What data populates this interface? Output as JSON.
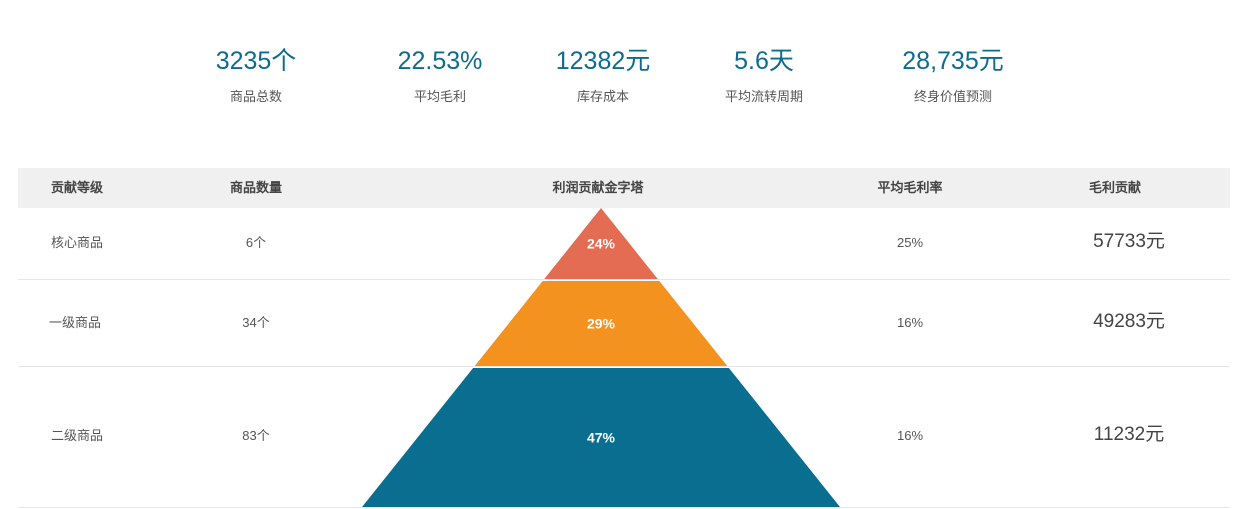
{
  "kpis": [
    {
      "value": "3235个",
      "label": "商品总数"
    },
    {
      "value": "22.53%",
      "label": "平均毛利"
    },
    {
      "value": "12382元",
      "label": "库存成本"
    },
    {
      "value": "5.6天",
      "label": "平均流转周期"
    },
    {
      "value": "28,735元",
      "label": "终身价值预测"
    }
  ],
  "table": {
    "headers": [
      "贡献等级",
      "商品数量",
      "利润贡献金字塔",
      "平均毛利率",
      "毛利贡献"
    ],
    "rows": [
      {
        "level": "核心商品",
        "count": "6个",
        "pct_label": "24%",
        "margin": "25%",
        "contribution": "57733元"
      },
      {
        "level": "一级商品",
        "count": "34个",
        "pct_label": "29%",
        "margin": "16%",
        "contribution": "49283元"
      },
      {
        "level": "二级商品",
        "count": "83个",
        "pct_label": "47%",
        "margin": "16%",
        "contribution": "11232元"
      }
    ]
  },
  "chart_data": {
    "type": "pyramid",
    "title": "利润贡献金字塔",
    "categories": [
      "核心商品",
      "一级商品",
      "二级商品"
    ],
    "values": [
      24,
      29,
      47
    ],
    "unit": "%",
    "colors": [
      "#e46c53",
      "#f4921f",
      "#096e90"
    ]
  }
}
